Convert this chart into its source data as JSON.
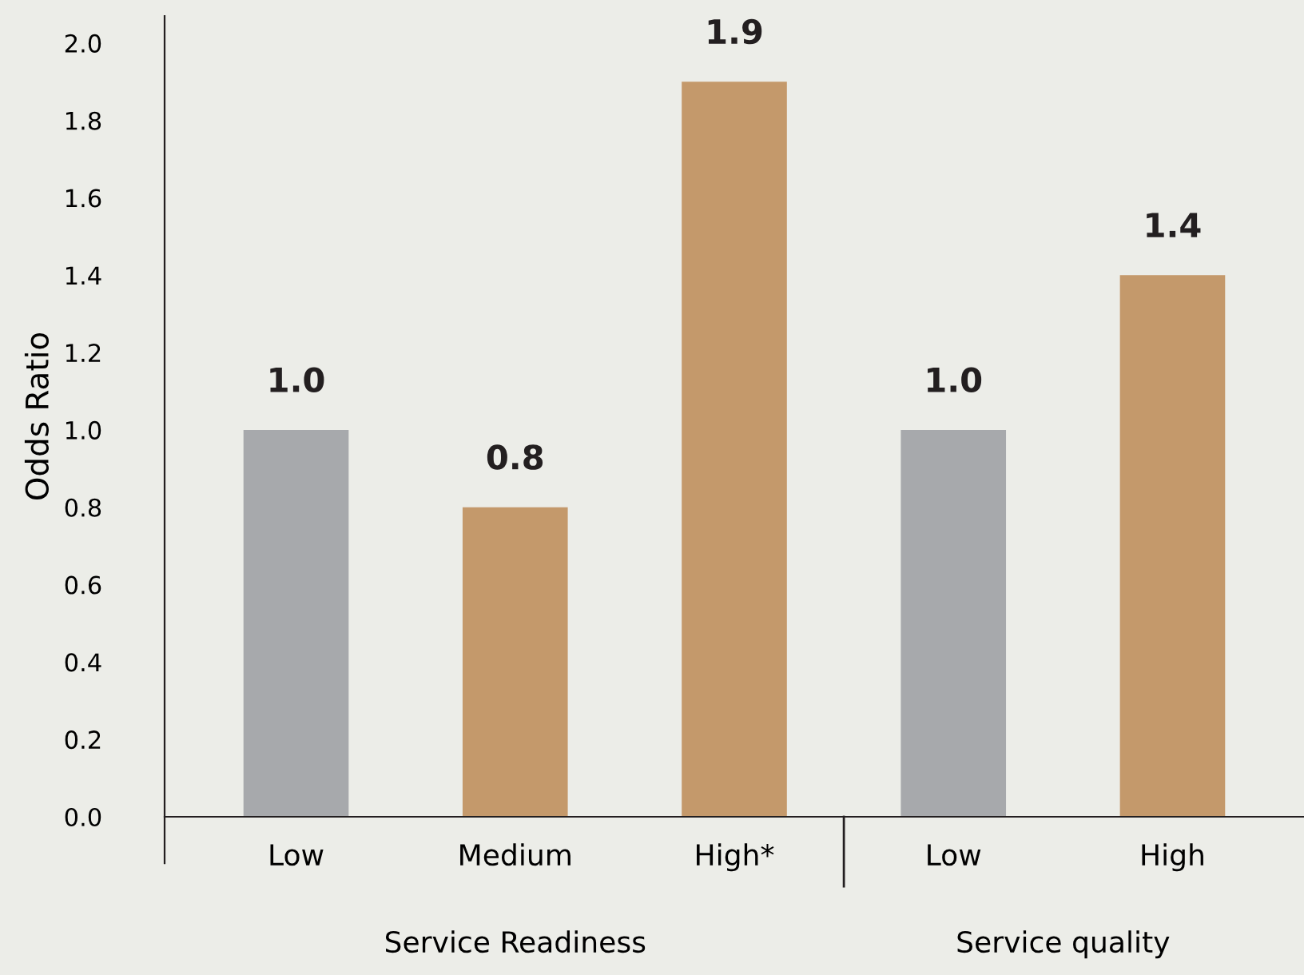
{
  "chart_data": {
    "type": "bar",
    "ylabel": "Odds Ratio",
    "categories": [
      "Low",
      "Medium",
      "High*",
      "Low",
      "High"
    ],
    "values": [
      1.0,
      0.8,
      1.9,
      1.0,
      1.4
    ],
    "colors": [
      "#a7a9ac",
      "#c4996b",
      "#c4996b",
      "#a7a9ac",
      "#c4996b"
    ],
    "ylim": [
      0,
      2.07
    ],
    "yticks": [
      {
        "value": 0,
        "label": "0.0"
      },
      {
        "value": 0.2,
        "label": "0.2"
      },
      {
        "value": 0.4,
        "label": "0.4"
      },
      {
        "value": 0.6,
        "label": "0.6"
      },
      {
        "value": 0.8,
        "label": "0.8"
      },
      {
        "value": 1.0,
        "label": "1.0"
      },
      {
        "value": 1.2,
        "label": "1.2"
      },
      {
        "value": 1.4,
        "label": "1.4"
      },
      {
        "value": 1.6,
        "label": "1.6"
      },
      {
        "value": 1.8,
        "label": "1.8"
      },
      {
        "value": 2.0,
        "label": "2.0"
      }
    ],
    "grid": false,
    "value_labels": [
      "1.0",
      "0.8",
      "1.9",
      "1.0",
      "1.4"
    ],
    "annotations": [
      "Service Readiness",
      "Service quality"
    ]
  }
}
